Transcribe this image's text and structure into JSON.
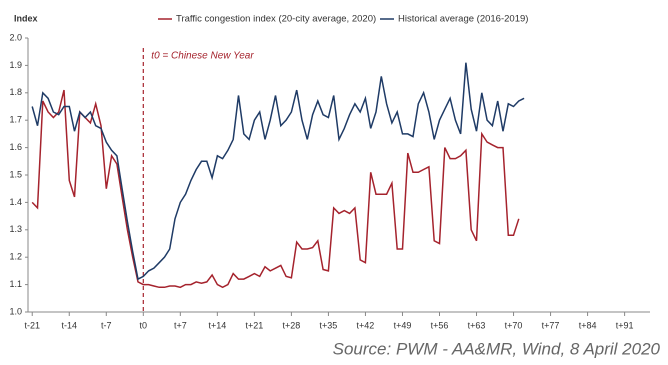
{
  "chart_data": {
    "type": "line",
    "y_label": "Index",
    "source": "Source: PWM - AA&MR, Wind, 8 April 2020",
    "annotation": {
      "text": "t0 = Chinese New Year",
      "x": 0
    },
    "x": [
      -21,
      -20,
      -19,
      -18,
      -17,
      -16,
      -15,
      -14,
      -13,
      -12,
      -11,
      -10,
      -9,
      -8,
      -7,
      -6,
      -5,
      -4,
      -3,
      -2,
      -1,
      0,
      1,
      2,
      3,
      4,
      5,
      6,
      7,
      8,
      9,
      10,
      11,
      12,
      13,
      14,
      15,
      16,
      17,
      18,
      19,
      20,
      21,
      22,
      23,
      24,
      25,
      26,
      27,
      28,
      29,
      30,
      31,
      32,
      33,
      34,
      35,
      36,
      37,
      38,
      39,
      40,
      41,
      42,
      43,
      44,
      45,
      46,
      47,
      48,
      49,
      50,
      51,
      52,
      53,
      54,
      55,
      56,
      57,
      58,
      59,
      60,
      61,
      62,
      63,
      64,
      65,
      66,
      67,
      68,
      69,
      70,
      71,
      72
    ],
    "series": [
      {
        "name": "Traffic congestion index (20-city average, 2020)",
        "color": "#a5232d",
        "values": [
          1.4,
          1.38,
          1.77,
          1.73,
          1.71,
          1.73,
          1.81,
          1.48,
          1.42,
          1.73,
          1.71,
          1.69,
          1.76,
          1.68,
          1.45,
          1.57,
          1.54,
          1.42,
          1.3,
          1.2,
          1.11,
          1.1,
          1.1,
          1.095,
          1.09,
          1.09,
          1.095,
          1.095,
          1.09,
          1.1,
          1.1,
          1.11,
          1.105,
          1.11,
          1.135,
          1.1,
          1.09,
          1.1,
          1.14,
          1.12,
          1.12,
          1.13,
          1.14,
          1.13,
          1.165,
          1.15,
          1.16,
          1.17,
          1.13,
          1.125,
          1.255,
          1.23,
          1.23,
          1.235,
          1.26,
          1.155,
          1.15,
          1.38,
          1.36,
          1.37,
          1.36,
          1.38,
          1.19,
          1.18,
          1.51,
          1.43,
          1.43,
          1.43,
          1.47,
          1.23,
          1.23,
          1.58,
          1.51,
          1.51,
          1.52,
          1.53,
          1.26,
          1.25,
          1.6,
          1.56,
          1.56,
          1.57,
          1.59,
          1.3,
          1.26,
          1.65,
          1.62,
          1.61,
          1.6,
          1.6,
          1.28,
          1.28,
          1.34,
          null
        ]
      },
      {
        "name": "Historical average (2016-2019)",
        "color": "#1f3b66",
        "values": [
          1.75,
          1.68,
          1.8,
          1.78,
          1.73,
          1.72,
          1.75,
          1.75,
          1.66,
          1.73,
          1.71,
          1.73,
          1.68,
          1.67,
          1.62,
          1.59,
          1.57,
          1.45,
          1.33,
          1.22,
          1.12,
          1.13,
          1.15,
          1.16,
          1.18,
          1.2,
          1.23,
          1.34,
          1.4,
          1.43,
          1.48,
          1.52,
          1.55,
          1.55,
          1.49,
          1.57,
          1.56,
          1.59,
          1.63,
          1.79,
          1.65,
          1.63,
          1.7,
          1.73,
          1.63,
          1.7,
          1.79,
          1.68,
          1.7,
          1.73,
          1.81,
          1.7,
          1.63,
          1.72,
          1.77,
          1.72,
          1.71,
          1.79,
          1.63,
          1.67,
          1.72,
          1.76,
          1.73,
          1.78,
          1.67,
          1.73,
          1.86,
          1.76,
          1.69,
          1.73,
          1.65,
          1.65,
          1.64,
          1.76,
          1.8,
          1.73,
          1.63,
          1.7,
          1.74,
          1.78,
          1.7,
          1.65,
          1.91,
          1.74,
          1.66,
          1.8,
          1.7,
          1.68,
          1.77,
          1.66,
          1.76,
          1.75,
          1.77,
          1.78
        ]
      }
    ],
    "xlim": [
      -21.8,
      95.8
    ],
    "ylim": [
      1.0,
      2.0
    ],
    "xticks": [
      {
        "value": -21,
        "label": "t-21"
      },
      {
        "value": -14,
        "label": "t-14"
      },
      {
        "value": -7,
        "label": "t-7"
      },
      {
        "value": 0,
        "label": "t0"
      },
      {
        "value": 7,
        "label": "t+7"
      },
      {
        "value": 14,
        "label": "t+14"
      },
      {
        "value": 21,
        "label": "t+21"
      },
      {
        "value": 28,
        "label": "t+28"
      },
      {
        "value": 35,
        "label": "t+35"
      },
      {
        "value": 42,
        "label": "t+42"
      },
      {
        "value": 49,
        "label": "t+49"
      },
      {
        "value": 56,
        "label": "t+56"
      },
      {
        "value": 63,
        "label": "t+63"
      },
      {
        "value": 70,
        "label": "t+70"
      },
      {
        "value": 77,
        "label": "t+77"
      },
      {
        "value": 84,
        "label": "t+84"
      },
      {
        "value": 91,
        "label": "t+91"
      }
    ],
    "yticks": [
      {
        "value": 1.0,
        "label": "1.0"
      },
      {
        "value": 1.1,
        "label": "1.1"
      },
      {
        "value": 1.2,
        "label": "1.2"
      },
      {
        "value": 1.3,
        "label": "1.3"
      },
      {
        "value": 1.4,
        "label": "1.4"
      },
      {
        "value": 1.5,
        "label": "1.5"
      },
      {
        "value": 1.6,
        "label": "1.6"
      },
      {
        "value": 1.7,
        "label": "1.7"
      },
      {
        "value": 1.8,
        "label": "1.8"
      },
      {
        "value": 1.9,
        "label": "1.9"
      },
      {
        "value": 2.0,
        "label": "2.0"
      }
    ],
    "grid": false
  }
}
